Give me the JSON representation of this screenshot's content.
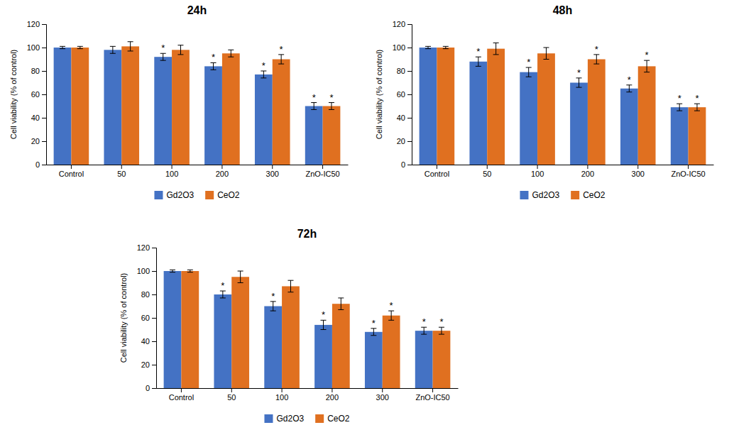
{
  "chart_data": [
    {
      "type": "bar",
      "title": "24h",
      "y_label": "Cell viability (% of control)",
      "categories": [
        "Control",
        "50",
        "100",
        "200",
        "300",
        "ZnO-IC50"
      ],
      "series": [
        {
          "name": "Gd2O3",
          "color": "#4472C4",
          "values": [
            100,
            98,
            92,
            84,
            77,
            50
          ],
          "errors": [
            1,
            3,
            3,
            3,
            3,
            3
          ],
          "annotations": [
            null,
            null,
            "*",
            "*",
            "*",
            "*"
          ]
        },
        {
          "name": "CeO2",
          "color": "#E07020",
          "values": [
            100,
            101,
            98,
            95,
            90,
            50
          ],
          "errors": [
            1,
            4,
            4,
            3,
            4,
            3
          ],
          "annotations": [
            null,
            null,
            null,
            null,
            "*",
            "*"
          ]
        }
      ],
      "ylim": [
        0,
        120
      ],
      "yticks": [
        0,
        20,
        40,
        60,
        80,
        100,
        120
      ],
      "grid": false,
      "legend": "bottom"
    },
    {
      "type": "bar",
      "title": "48h",
      "y_label": "Cell viability (% of control)",
      "categories": [
        "Control",
        "50",
        "100",
        "200",
        "300",
        "ZnO-IC50"
      ],
      "series": [
        {
          "name": "Gd2O3",
          "color": "#4472C4",
          "values": [
            100,
            88,
            79,
            70,
            65,
            49
          ],
          "errors": [
            1,
            4,
            4,
            4,
            3,
            3
          ],
          "annotations": [
            null,
            "*",
            "*",
            "*",
            "*",
            "*"
          ]
        },
        {
          "name": "CeO2",
          "color": "#E07020",
          "values": [
            100,
            99,
            95,
            90,
            84,
            49
          ],
          "errors": [
            1,
            5,
            5,
            4,
            5,
            3
          ],
          "annotations": [
            null,
            null,
            null,
            "*",
            "*",
            "*"
          ]
        }
      ],
      "ylim": [
        0,
        120
      ],
      "yticks": [
        0,
        20,
        40,
        60,
        80,
        100,
        120
      ],
      "grid": false,
      "legend": "bottom"
    },
    {
      "type": "bar",
      "title": "72h",
      "y_label": "Cell viability (% of control)",
      "categories": [
        "Control",
        "50",
        "100",
        "200",
        "300",
        "ZnO-IC50"
      ],
      "series": [
        {
          "name": "Gd2O3",
          "color": "#4472C4",
          "values": [
            100,
            80,
            70,
            54,
            48,
            49
          ],
          "errors": [
            1,
            3,
            4,
            4,
            3,
            3
          ],
          "annotations": [
            null,
            "*",
            "*",
            "*",
            "*",
            "*"
          ]
        },
        {
          "name": "CeO2",
          "color": "#E07020",
          "values": [
            100,
            95,
            87,
            72,
            62,
            49
          ],
          "errors": [
            1,
            5,
            5,
            5,
            4,
            3
          ],
          "annotations": [
            null,
            null,
            null,
            null,
            "*",
            "*"
          ]
        }
      ],
      "ylim": [
        0,
        120
      ],
      "yticks": [
        0,
        20,
        40,
        60,
        80,
        100,
        120
      ],
      "grid": false,
      "legend": "bottom"
    }
  ]
}
